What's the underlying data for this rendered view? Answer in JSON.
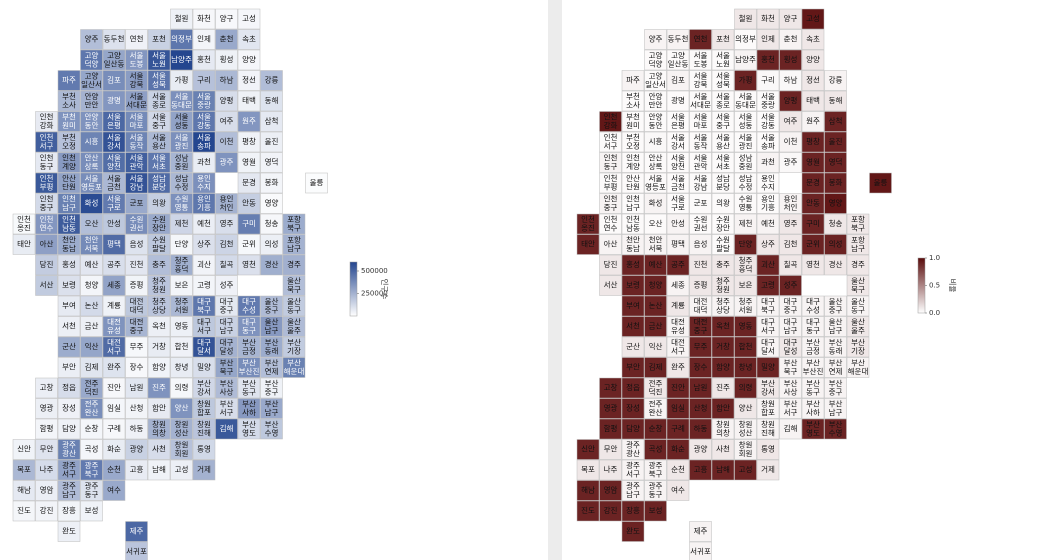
{
  "chart_data": [
    {
      "type": "tilemap",
      "color_low": "#ffffff",
      "color_high": "#24468f",
      "colorbar": {
        "title": "인구수",
        "lim": [
          0,
          600000
        ],
        "ticks": [
          250000,
          500000
        ]
      },
      "categories": [
        "철원",
        "화천",
        "양구",
        "고성",
        "양주",
        "동두천",
        "연천",
        "포천",
        "의정부",
        "인제",
        "춘천",
        "속초",
        "고양 덕양",
        "고양 일산동",
        "서울 도봉",
        "서울 노원",
        "남양주",
        "홍천",
        "횡성",
        "양양",
        "파주",
        "고양 일산서",
        "김포",
        "서울 강북",
        "서울 성북",
        "가평",
        "구리",
        "하남",
        "정선",
        "강릉",
        "부천 소사",
        "안양 만안",
        "광명",
        "서울 서대문",
        "서울 종로",
        "서울 동대문",
        "서울 중랑",
        "양평",
        "태백",
        "동해",
        "인천 강화",
        "부천 원미",
        "안양 동안",
        "서울 은평",
        "서울 마포",
        "서울 중구",
        "서울 성동",
        "서울 강동",
        "여주",
        "원주",
        "삼척",
        "인천 서구",
        "부천 오정",
        "시흥",
        "서울 강서",
        "서울 동작",
        "서울 용산",
        "서울 광진",
        "서울 송파",
        "이천",
        "평창",
        "울진",
        "인천 동구",
        "인천 계양",
        "안산 상록",
        "서울 양천",
        "서울 관악",
        "서울 서초",
        "성남 중원",
        "과천",
        "광주",
        "영월",
        "영덕",
        "인천 부평",
        "안산 단원",
        "서울 영등포",
        "서울 금천",
        "서울 강남",
        "성남 분당",
        "성남 수정",
        "용인 수지",
        "문경",
        "봉화",
        "울릉",
        "인천 중구",
        "인천 남구",
        "화성",
        "서울 구로",
        "군포",
        "의왕",
        "수원 영통",
        "용인 기흥",
        "용인 처인",
        "안동",
        "영양",
        "인천 옹진",
        "인천 연수",
        "인천 남동",
        "오산",
        "안성",
        "수원 권선",
        "수원 장안",
        "제천",
        "예천",
        "영주",
        "구미",
        "청송",
        "포항 북구",
        "태안",
        "아산",
        "천안 동남",
        "천안 서북",
        "평택",
        "음성",
        "수원 팔달",
        "단양",
        "상주",
        "김천",
        "군위",
        "의성",
        "포항 남구",
        "당진",
        "홍성",
        "예산",
        "공주",
        "진천",
        "충주",
        "청주 흥덕",
        "괴산",
        "칠곡",
        "영천",
        "경산",
        "경주",
        "서산",
        "보령",
        "청양",
        "세종",
        "증평",
        "청주 청원",
        "보은",
        "고령",
        "성주",
        "울산 북구",
        "부여",
        "논산",
        "계룡",
        "대전 대덕",
        "청주 상당",
        "청주 서원",
        "대구 북구",
        "대구 중구",
        "대구 수성",
        "울산 중구",
        "울산 동구",
        "서천",
        "금산",
        "대전 유성",
        "대전 중구",
        "옥천",
        "영동",
        "대구 서구",
        "대구 남구",
        "대구 동구",
        "울산 남구",
        "울산 울주",
        "군산",
        "익산",
        "대전 서구",
        "무주",
        "거창",
        "합천",
        "대구 달서",
        "대구 달성",
        "부산 금정",
        "부산 동래",
        "부산 기장",
        "부안",
        "김제",
        "완주",
        "장수",
        "함양",
        "창녕",
        "밀양",
        "부산 북구",
        "부산 부산진",
        "부산 연제",
        "부산 해운대",
        "고창",
        "정읍",
        "전주 덕진",
        "진안",
        "남원",
        "진주",
        "의령",
        "부산 강서",
        "부산 사상",
        "부산 동구",
        "부산 중구",
        "영광",
        "장성",
        "전주 완산",
        "임실",
        "산청",
        "함안",
        "양산",
        "창원 합포",
        "부산 서구",
        "부산 사하",
        "부산 남구",
        "함평",
        "담양",
        "순창",
        "구례",
        "하동",
        "창원 의창",
        "창원 성산",
        "창원 진해",
        "김해",
        "부산 영도",
        "부산 수영",
        "신안",
        "무안",
        "광주 광산",
        "곡성",
        "화순",
        "광양",
        "사천",
        "창원 회원",
        "통영",
        "목포",
        "나주",
        "광주 서구",
        "광주 북구",
        "순천",
        "고흥",
        "남해",
        "고성",
        "거제",
        "해남",
        "영암",
        "광주 남구",
        "광주 동구",
        "여수",
        "진도",
        "강진",
        "장흥",
        "보성",
        "완도",
        "제주",
        "서귀포"
      ],
      "values": [
        46000,
        26000,
        23000,
        28000,
        210000,
        97000,
        44000,
        150000,
        440000,
        32000,
        280000,
        82000,
        440000,
        290000,
        340000,
        550000,
        600000,
        70000,
        46000,
        28000,
        430000,
        290000,
        370000,
        320000,
        450000,
        62000,
        200000,
        230000,
        38000,
        213000,
        230000,
        250000,
        340000,
        310000,
        150000,
        360000,
        410000,
        110000,
        46000,
        92000,
        67000,
        350000,
        350000,
        490000,
        380000,
        130000,
        300000,
        440000,
        110000,
        340000,
        70000,
        520000,
        200000,
        400000,
        560000,
        400000,
        230000,
        360000,
        600000,
        210000,
        43000,
        51000,
        70000,
        330000,
        370000,
        470000,
        520000,
        440000,
        240000,
        60000,
        350000,
        40000,
        39000,
        540000,
        300000,
        370000,
        230000,
        560000,
        480000,
        230000,
        360000,
        73000,
        33000,
        10000,
        120000,
        410000,
        580000,
        430000,
        280000,
        160000,
        360000,
        440000,
        250000,
        160000,
        17000,
        21000,
        340000,
        530000,
        210000,
        180000,
        370000,
        280000,
        135000,
        55000,
        107000,
        420000,
        25000,
        270000,
        63000,
        310000,
        270000,
        380000,
        480000,
        92000,
        180000,
        30000,
        100000,
        140000,
        24000,
        53000,
        250000,
        165000,
        100000,
        80000,
        107000,
        80000,
        210000,
        260000,
        38000,
        120000,
        100000,
        260000,
        255000,
        170000,
        100000,
        32000,
        300000,
        37000,
        190000,
        33000,
        33000,
        45000,
        210000,
        68000,
        120000,
        43000,
        180000,
        190000,
        230000,
        440000,
        76000,
        430000,
        220000,
        170000,
        53000,
        52000,
        350000,
        240000,
        51000,
        48000,
        180000,
        150000,
        350000,
        330000,
        220000,
        270000,
        290000,
        480000,
        24000,
        62000,
        45000,
        560000,
        250000,
        240000,
        270000,
        170000,
        54000,
        84000,
        92000,
        22000,
        40000,
        62000,
        106000,
        290000,
        370000,
        210000,
        410000,
        56000,
        112000,
        280000,
        26000,
        82000,
        350000,
        27000,
        130000,
        220000,
        90000,
        43000,
        53000,
        45000,
        370000,
        29000,
        35000,
        67000,
        350000,
        180000,
        110000,
        330000,
        280000,
        33000,
        47000,
        29000,
        26000,
        45000,
        250000,
        250000,
        190000,
        540000,
        120000,
        180000,
        40000,
        90000,
        410000,
        29000,
        63000,
        150000,
        112000,
        200000,
        128000,
        230000,
        115000,
        300000,
        430000,
        280000,
        64000,
        43000,
        52000,
        250000,
        70000,
        54000,
        220000,
        95000,
        280000,
        30000,
        35000,
        37000,
        40000,
        50000,
        490000,
        190000
      ]
    },
    {
      "type": "tilemap",
      "color_low": "#ffffff",
      "color_high": "#5a0b0b",
      "colorbar": {
        "title": "비율",
        "lim": [
          0,
          1
        ],
        "ticks": [
          {
            "value": 0,
            "label": "0.0"
          },
          0.5,
          {
            "value": 1,
            "label": "1.0"
          }
        ]
      },
      "categories": [
        "철원",
        "화천",
        "양구",
        "고성",
        "양주",
        "동두천",
        "연천",
        "포천",
        "의정부",
        "인제",
        "춘천",
        "속초",
        "고양 덕양",
        "고양 일산동",
        "서울 도봉",
        "서울 노원",
        "남양주",
        "홍천",
        "횡성",
        "양양",
        "파주",
        "고양 일산서",
        "김포",
        "서울 강북",
        "서울 성북",
        "가평",
        "구리",
        "하남",
        "정선",
        "강릉",
        "부천 소사",
        "안양 만안",
        "광명",
        "서울 서대문",
        "서울 종로",
        "서울 동대문",
        "서울 중랑",
        "양평",
        "태백",
        "동해",
        "인천 강화",
        "부천 원미",
        "안양 동안",
        "서울 은평",
        "서울 마포",
        "서울 중구",
        "서울 성동",
        "서울 강동",
        "여주",
        "원주",
        "삼척",
        "인천 서구",
        "부천 오정",
        "시흥",
        "서울 강서",
        "서울 동작",
        "서울 용산",
        "서울 광진",
        "서울 송파",
        "이천",
        "평창",
        "울진",
        "인천 동구",
        "인천 계양",
        "안산 상록",
        "서울 양천",
        "서울 관악",
        "서울 서초",
        "성남 중원",
        "과천",
        "광주",
        "영월",
        "영덕",
        "인천 부평",
        "안산 단원",
        "서울 영등포",
        "서울 금천",
        "서울 강남",
        "성남 분당",
        "성남 수정",
        "용인 수지",
        "문경",
        "봉화",
        "울릉",
        "인천 중구",
        "인천 남구",
        "화성",
        "서울 구로",
        "군포",
        "의왕",
        "수원 영통",
        "용인 기흥",
        "용인 처인",
        "안동",
        "영양",
        "인천 옹진",
        "인천 연수",
        "인천 남동",
        "오산",
        "안성",
        "수원 권선",
        "수원 장안",
        "제천",
        "예천",
        "영주",
        "구미",
        "청송",
        "포항 북구",
        "태안",
        "아산",
        "천안 동남",
        "천안 서북",
        "평택",
        "음성",
        "수원 팔달",
        "단양",
        "상주",
        "김천",
        "군위",
        "의성",
        "포항 남구",
        "당진",
        "홍성",
        "예산",
        "공주",
        "진천",
        "충주",
        "청주 흥덕",
        "괴산",
        "칠곡",
        "영천",
        "경산",
        "경주",
        "서산",
        "보령",
        "청양",
        "세종",
        "증평",
        "청주 청원",
        "보은",
        "고령",
        "성주",
        "울산 북구",
        "부여",
        "논산",
        "계룡",
        "대전 대덕",
        "청주 상당",
        "청주 서원",
        "대구 북구",
        "대구 중구",
        "대구 수성",
        "울산 중구",
        "울산 동구",
        "서천",
        "금산",
        "대전 유성",
        "대전 중구",
        "옥천",
        "영동",
        "대구 서구",
        "대구 남구",
        "대구 동구",
        "울산 남구",
        "울산 울주",
        "군산",
        "익산",
        "대전 서구",
        "무주",
        "거창",
        "합천",
        "대구 달서",
        "대구 달성",
        "부산 금정",
        "부산 동래",
        "부산 기장",
        "부안",
        "김제",
        "완주",
        "장수",
        "함양",
        "창녕",
        "밀양",
        "부산 북구",
        "부산 부산진",
        "부산 연제",
        "부산 해운대",
        "고창",
        "정읍",
        "전주 덕진",
        "진안",
        "남원",
        "진주",
        "의령",
        "부산 강서",
        "부산 사상",
        "부산 동구",
        "부산 중구",
        "영광",
        "장성",
        "전주 완산",
        "임실",
        "산청",
        "함안",
        "양산",
        "창원 합포",
        "부산 서구",
        "부산 사하",
        "부산 남구",
        "함평",
        "담양",
        "순창",
        "구례",
        "하동",
        "창원 의창",
        "창원 성산",
        "창원 진해",
        "김해",
        "부산 영도",
        "부산 수영",
        "신안",
        "무안",
        "광주 광산",
        "곡성",
        "화순",
        "광양",
        "사천",
        "창원 회원",
        "통영",
        "목포",
        "나주",
        "광주 서구",
        "광주 북구",
        "순천",
        "고흥",
        "남해",
        "고성",
        "거제",
        "해남",
        "영암",
        "광주 남구",
        "광주 동구",
        "여수",
        "진도",
        "강진",
        "장흥",
        "보성",
        "완도",
        "제주",
        "서귀포"
      ],
      "values": [
        0.1,
        0.1,
        0.1,
        0.95,
        0.05,
        0.05,
        0.9,
        0.1,
        0.02,
        0.1,
        0.05,
        0.1,
        0.02,
        0.02,
        0.02,
        0.02,
        0.05,
        0.9,
        0.9,
        0.1,
        0.05,
        0.02,
        0.05,
        0.02,
        0.02,
        0.9,
        0.03,
        0.03,
        0.1,
        0.05,
        0.02,
        0.02,
        0.02,
        0.02,
        0.02,
        0.02,
        0.02,
        0.9,
        0.1,
        0.1,
        0.95,
        0.02,
        0.02,
        0.02,
        0.02,
        0.02,
        0.02,
        0.02,
        0.1,
        0.05,
        0.9,
        0.02,
        0.02,
        0.03,
        0.02,
        0.02,
        0.02,
        0.02,
        0.02,
        0.05,
        0.9,
        0.9,
        0.05,
        0.02,
        0.02,
        0.02,
        0.02,
        0.02,
        0.02,
        0.05,
        0.03,
        0.9,
        0.9,
        0.02,
        0.02,
        0.02,
        0.02,
        0.02,
        0.02,
        0.02,
        0.02,
        0.9,
        0.9,
        0.95,
        0.05,
        0.02,
        0.05,
        0.02,
        0.02,
        0.02,
        0.02,
        0.02,
        0.05,
        0.9,
        0.95,
        0.9,
        0.02,
        0.02,
        0.02,
        0.05,
        0.02,
        0.02,
        0.05,
        0.05,
        0.1,
        0.9,
        0.1,
        0.1,
        0.9,
        0.05,
        0.05,
        0.05,
        0.05,
        0.05,
        0.02,
        0.9,
        0.1,
        0.1,
        0.9,
        0.9,
        0.1,
        0.1,
        0.9,
        0.9,
        0.9,
        0.1,
        0.1,
        0.1,
        0.9,
        0.1,
        0.1,
        0.1,
        0.1,
        0.1,
        0.9,
        0.9,
        0.05,
        0.1,
        0.1,
        0.1,
        0.9,
        0.9,
        0.1,
        0.9,
        0.9,
        0.1,
        0.05,
        0.05,
        0.05,
        0.05,
        0.05,
        0.05,
        0.05,
        0.05,
        0.9,
        0.9,
        0.05,
        0.9,
        0.9,
        0.9,
        0.05,
        0.05,
        0.05,
        0.05,
        0.1,
        0.1,
        0.1,
        0.05,
        0.9,
        0.9,
        0.9,
        0.05,
        0.1,
        0.05,
        0.05,
        0.1,
        0.9,
        0.9,
        0.1,
        0.9,
        0.9,
        0.9,
        0.9,
        0.05,
        0.05,
        0.05,
        0.05,
        0.9,
        0.9,
        0.1,
        0.9,
        0.9,
        0.1,
        0.9,
        0.1,
        0.05,
        0.05,
        0.05,
        0.9,
        0.9,
        0.05,
        0.9,
        0.9,
        0.9,
        0.1,
        0.05,
        0.05,
        0.05,
        0.05,
        0.9,
        0.9,
        0.9,
        0.9,
        0.9,
        0.05,
        0.05,
        0.05,
        0.05,
        0.9,
        0.9,
        0.9,
        0.1,
        0.05,
        0.9,
        0.9,
        0.1,
        0.1,
        0.05,
        0.1,
        0.1,
        0.1,
        0.05,
        0.05,
        0.1,
        0.9,
        0.9,
        0.9,
        0.1,
        0.9,
        0.9,
        0.05,
        0.05,
        0.1,
        0.9,
        0.9,
        0.9,
        0.9,
        0.9,
        0.05,
        0.05
      ]
    }
  ]
}
